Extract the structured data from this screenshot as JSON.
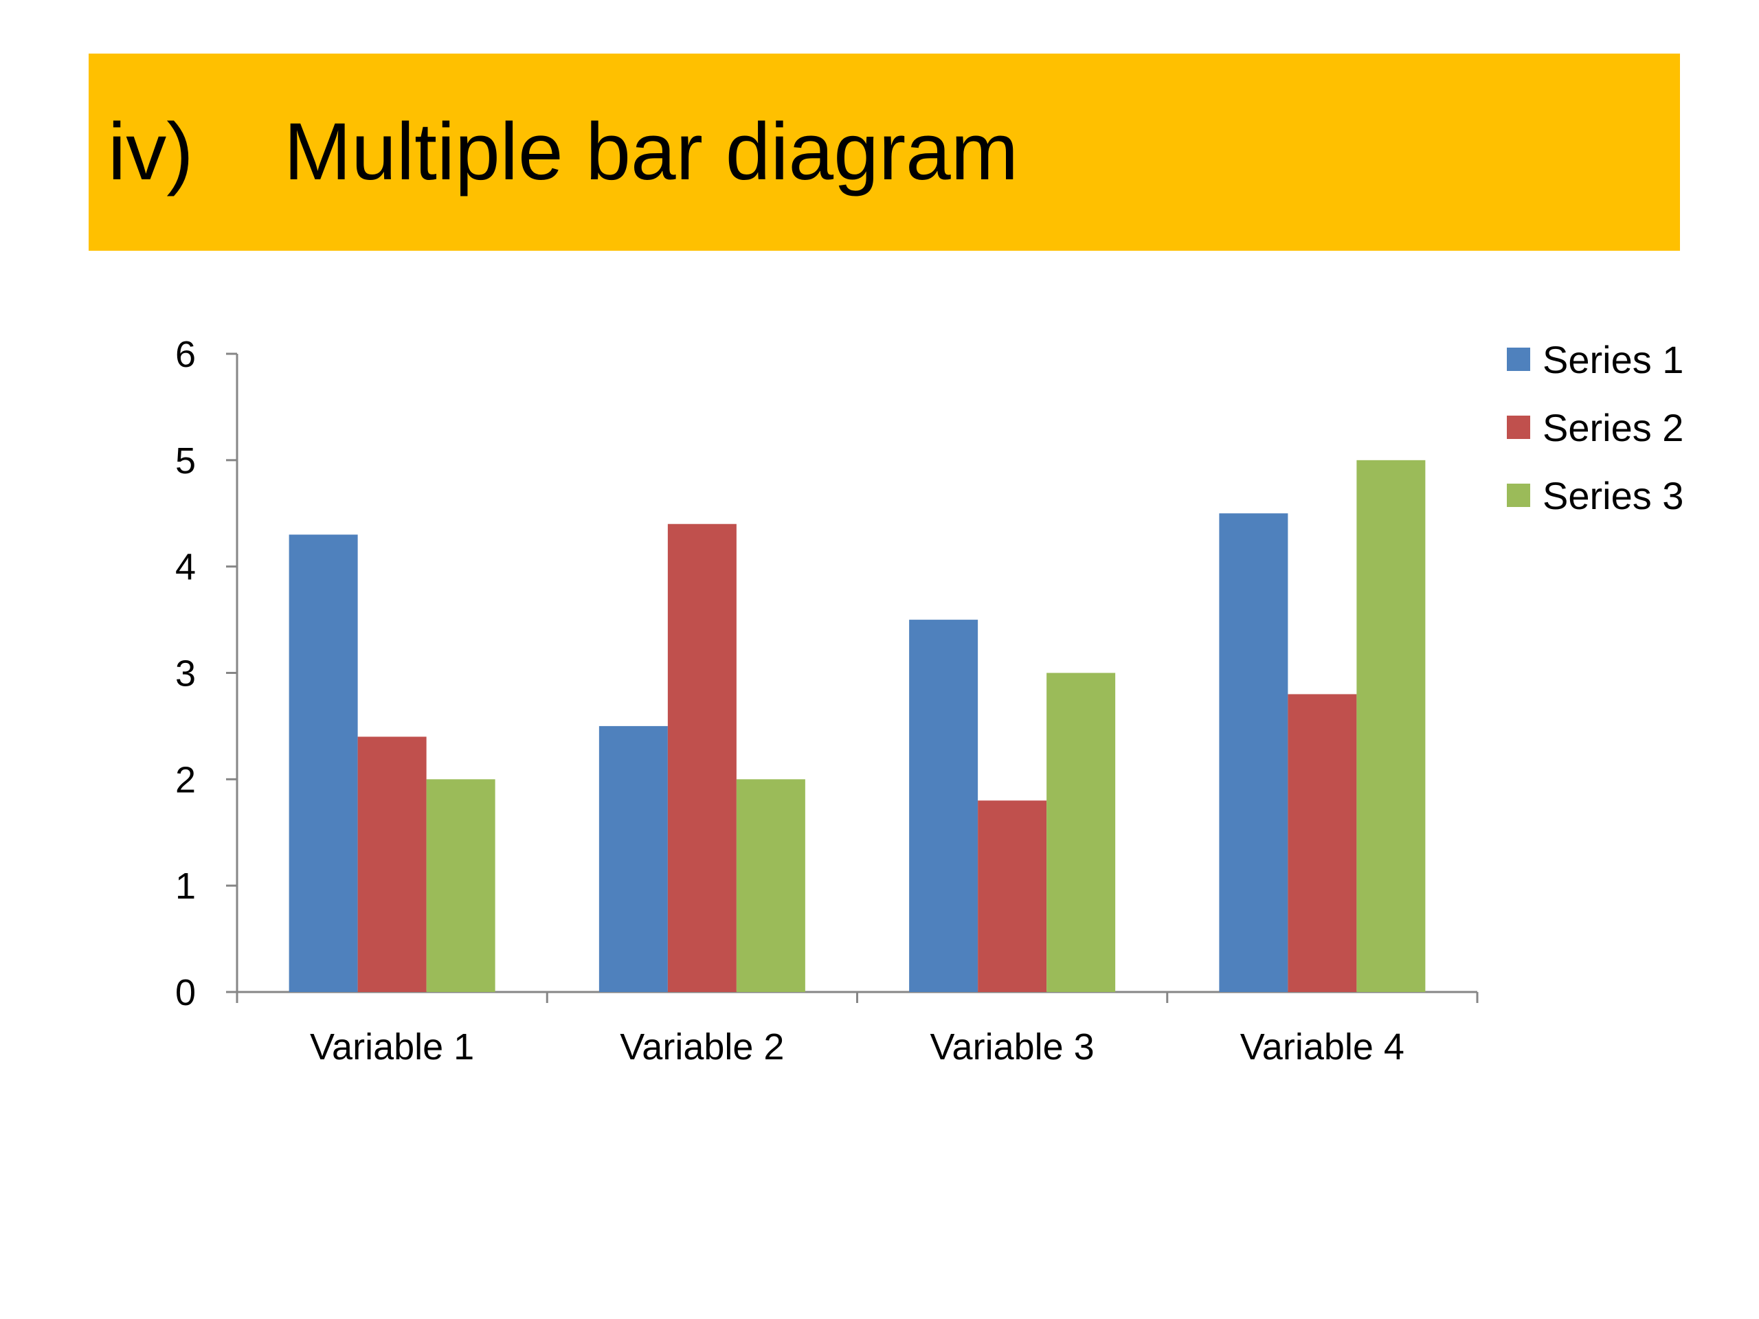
{
  "slide": {
    "title_number": "iv)",
    "title_text": "Multiple bar diagram",
    "banner_color": "#FFC000"
  },
  "chart_data": {
    "type": "bar",
    "title": "",
    "xlabel": "",
    "ylabel": "",
    "categories": [
      "Variable 1",
      "Variable 2",
      "Variable 3",
      "Variable 4"
    ],
    "series": [
      {
        "name": "Series 1",
        "color": "#4F81BD",
        "values": [
          4.3,
          2.5,
          3.5,
          4.5
        ]
      },
      {
        "name": "Series 2",
        "color": "#C0504D",
        "values": [
          2.4,
          4.4,
          1.8,
          2.8
        ]
      },
      {
        "name": "Series 3",
        "color": "#9BBB59",
        "values": [
          2.0,
          2.0,
          3.0,
          5.0
        ]
      }
    ],
    "ylim": [
      0,
      6
    ],
    "yticks": [
      0,
      1,
      2,
      3,
      4,
      5,
      6
    ],
    "grid": false,
    "legend": "top-right"
  }
}
